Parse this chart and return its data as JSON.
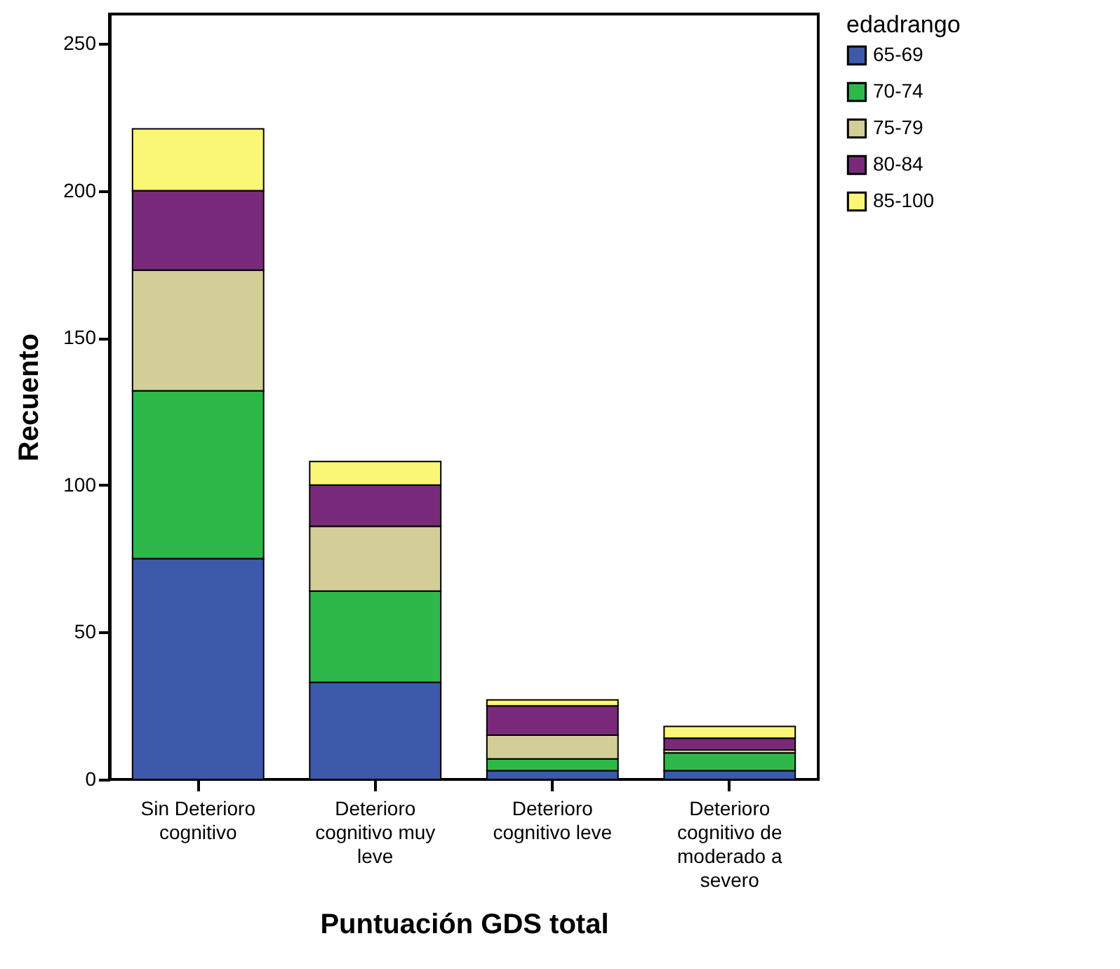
{
  "chart_data": {
    "type": "bar",
    "stacked": true,
    "xlabel": "Puntuación GDS total",
    "ylabel": "Recuento",
    "legend_title": "edadrango",
    "legend": "top right",
    "grid": false,
    "categories": [
      "Sin Deterioro cognitivo",
      "Deterioro cognitivo muy leve",
      "Deterioro cognitivo leve",
      "Deterioro cognitivo de moderado a severo"
    ],
    "ylim": [
      0,
      260
    ],
    "yticks": [
      0,
      50,
      100,
      150,
      200,
      250
    ],
    "series": [
      {
        "name": "65-69",
        "color": "#3e58ac",
        "values": [
          75,
          33,
          3,
          3
        ]
      },
      {
        "name": "70-74",
        "color": "#2eb84a",
        "values": [
          57,
          31,
          4,
          6
        ]
      },
      {
        "name": "75-79",
        "color": "#d3ce97",
        "values": [
          41,
          22,
          8,
          1
        ]
      },
      {
        "name": "80-84",
        "color": "#7a2a7a",
        "values": [
          27,
          14,
          10,
          4
        ]
      },
      {
        "name": "85-100",
        "color": "#fbf776",
        "values": [
          21,
          8,
          2,
          4
        ]
      }
    ]
  }
}
